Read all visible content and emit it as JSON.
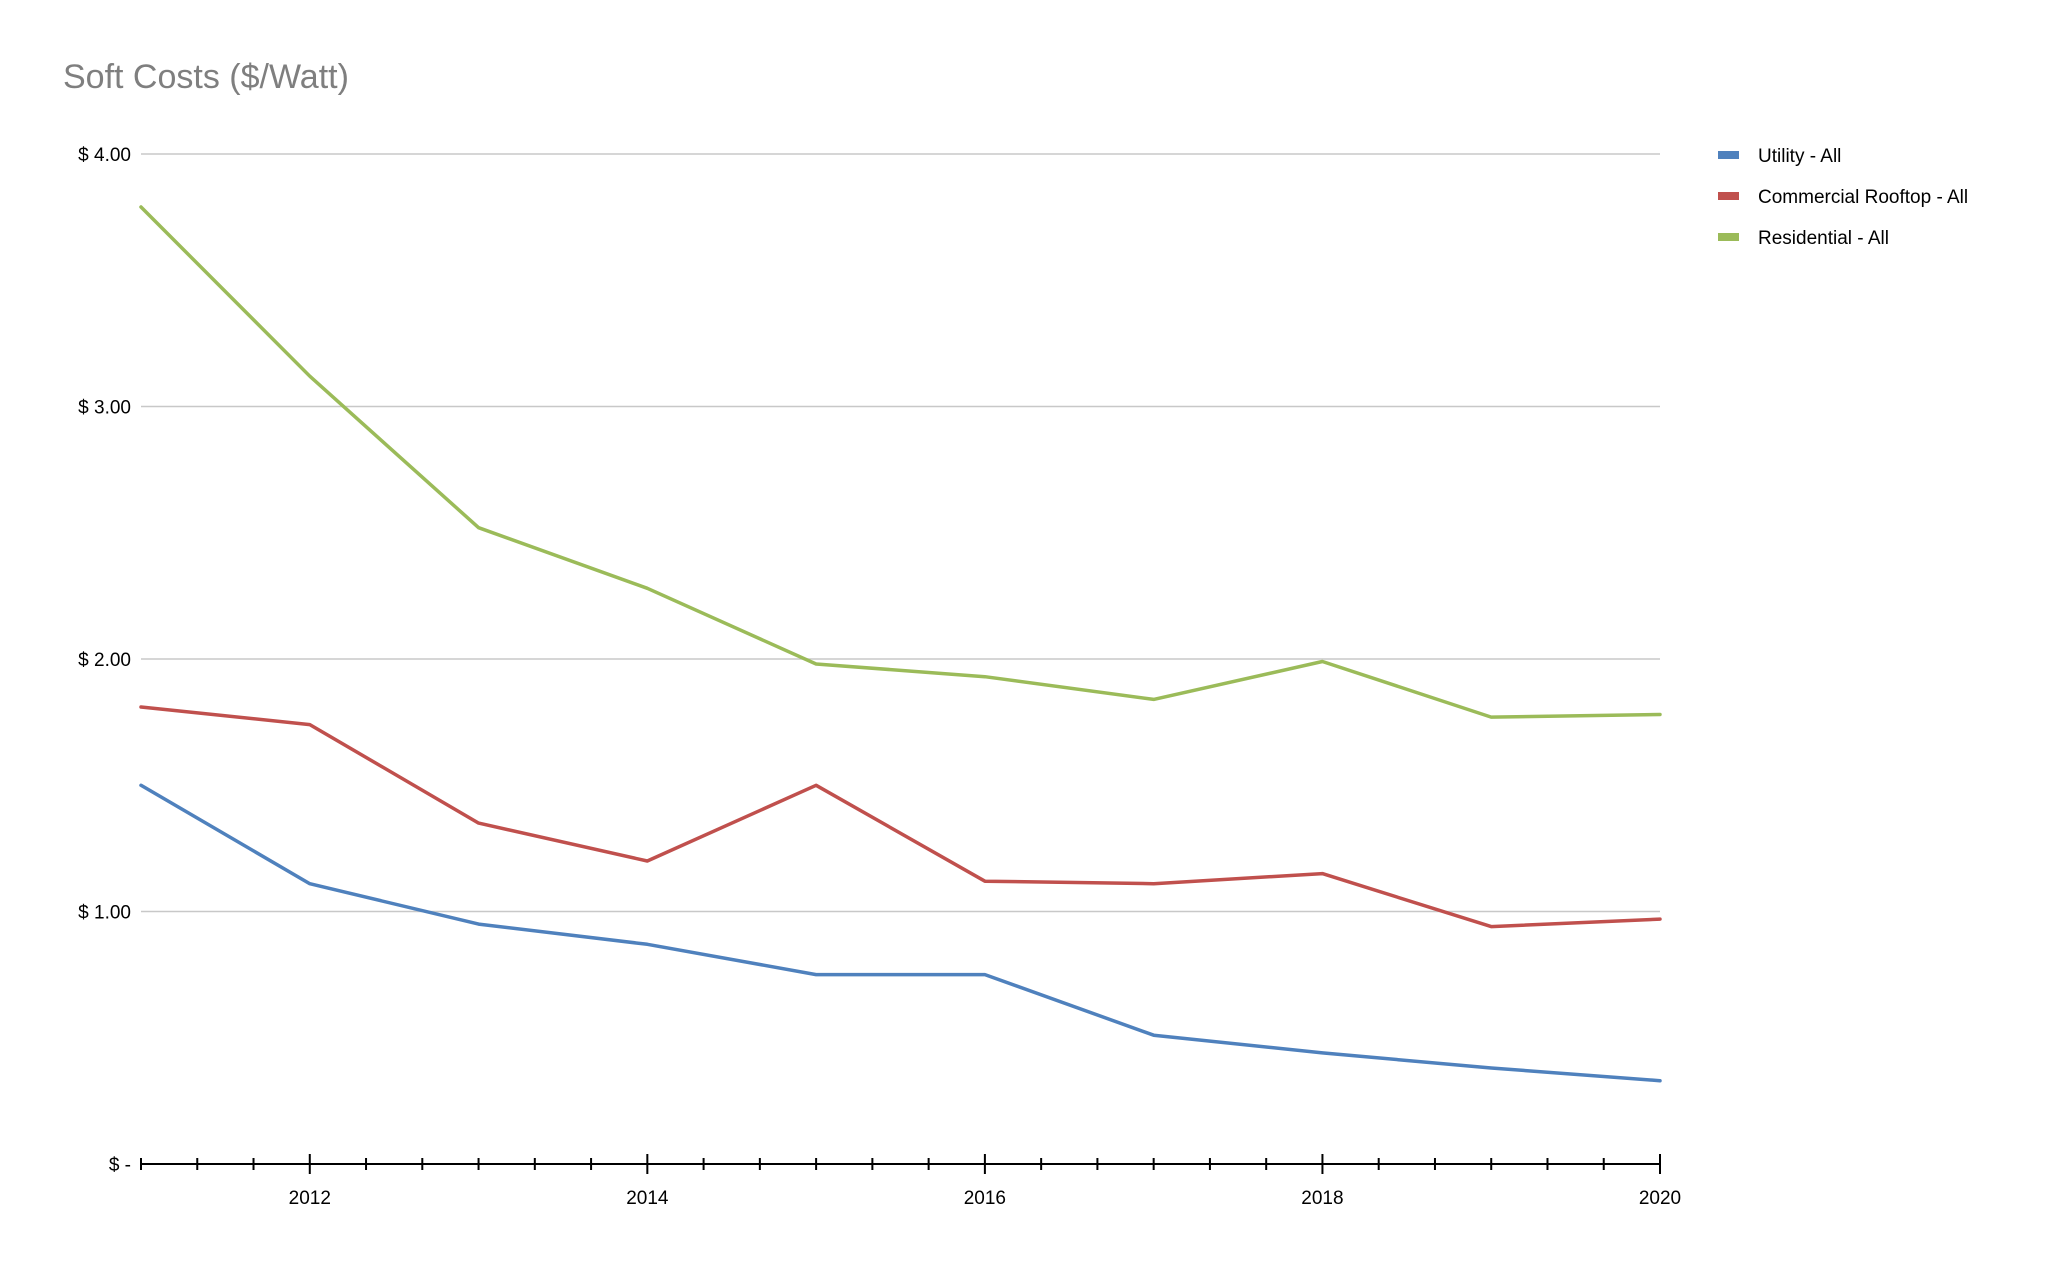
{
  "chart_data": {
    "type": "line",
    "title": "Soft Costs ($/Watt)",
    "xlabel": "",
    "ylabel": "",
    "x": [
      2011,
      2012,
      2013,
      2014,
      2015,
      2016,
      2017,
      2018,
      2019,
      2020
    ],
    "xlim": [
      2011,
      2020
    ],
    "x_ticks": [
      "2012",
      "2014",
      "2016",
      "2018",
      "2020"
    ],
    "ylim": [
      0,
      4
    ],
    "y_ticks": [
      "$ -",
      "$ 1.00",
      "$ 2.00",
      "$ 3.00",
      "$ 4.00"
    ],
    "grid": "horizontal",
    "legend_position": "top-right",
    "series": [
      {
        "name": "Utility - All",
        "color": "#4f81bd",
        "values": [
          1.5,
          1.11,
          0.95,
          0.87,
          0.75,
          0.75,
          0.51,
          0.44,
          0.38,
          0.33
        ]
      },
      {
        "name": "Commercial Rooftop - All",
        "color": "#c0504d",
        "values": [
          1.81,
          1.74,
          1.35,
          1.2,
          1.5,
          1.12,
          1.11,
          1.15,
          0.94,
          0.97
        ]
      },
      {
        "name": "Residential - All",
        "color": "#9bbb59",
        "values": [
          3.79,
          3.12,
          2.52,
          2.28,
          1.98,
          1.93,
          1.84,
          1.99,
          1.77,
          1.78
        ]
      }
    ]
  }
}
